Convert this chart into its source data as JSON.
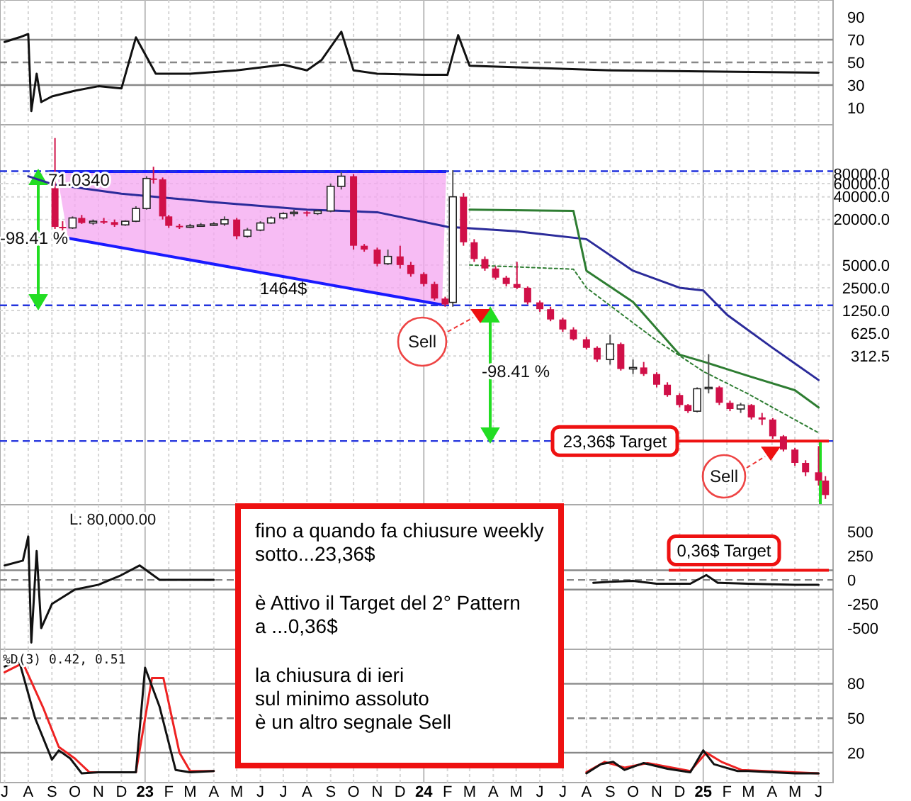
{
  "chart_data": [
    {
      "type": "line",
      "xlim": [
        "2022-06-25",
        "2025-06-20"
      ],
      "ylim": [
        -5,
        105
      ],
      "yticks": [
        10,
        30,
        50,
        70,
        90
      ],
      "tick_labels": "y",
      "grid": "x",
      "ref_lines": [
        {
          "axis": "y",
          "value": 70,
          "color": "#888888",
          "line_style": "solid"
        },
        {
          "axis": "y",
          "value": 30,
          "color": "#888888",
          "line_style": "solid"
        },
        {
          "axis": "y",
          "value": 50,
          "color": "#888888",
          "line_style": "dashed"
        }
      ],
      "series": [
        {
          "color": "#111111",
          "x": [
            "2022-07-01",
            "2022-07-20",
            "2022-08-01",
            "2022-08-05",
            "2022-08-12",
            "2022-08-18",
            "2022-09-01",
            "2022-10-01",
            "2022-11-01",
            "2022-12-01",
            "2022-12-20",
            "2023-01-15",
            "2023-03-01",
            "2023-05-01",
            "2023-07-01",
            "2023-08-01",
            "2023-08-20",
            "2023-09-15",
            "2023-10-01",
            "2023-11-01",
            "2024-01-01",
            "2024-02-01",
            "2024-02-15",
            "2024-03-01",
            "2024-06-01",
            "2024-09-01",
            "2025-01-01",
            "2025-06-01"
          ],
          "values": [
            68,
            72,
            75,
            7,
            40,
            15,
            20,
            25,
            29,
            27,
            72,
            40,
            40,
            43,
            48,
            43,
            52,
            77,
            43,
            40,
            39,
            39,
            74,
            47,
            45,
            43,
            42,
            41
          ]
        }
      ]
    },
    {
      "type": "candlestick",
      "log": true,
      "xlim": [
        "2022-06-25",
        "2025-06-20"
      ],
      "ylim": [
        3.5,
        330000
      ],
      "tick_labels": "y",
      "grid": true,
      "yticks": [
        {
          "value": 312.5,
          "label": "312.5"
        },
        {
          "value": 625,
          "label": "625.0"
        },
        {
          "value": 1250,
          "label": "1250.0"
        },
        {
          "value": 2500,
          "label": "2500.0"
        },
        {
          "value": 5000,
          "label": "5000.0"
        },
        {
          "value": 20000,
          "label": "20000.0"
        },
        {
          "value": 40000,
          "label": "40000.0"
        },
        {
          "value": 60000,
          "label": "60000.0"
        },
        {
          "value": 80000,
          "label": "80000.0"
        }
      ],
      "x": [
        "2022-09-05",
        "2022-09-15",
        "2022-09-28",
        "2022-10-10",
        "2022-10-25",
        "2022-11-08",
        "2022-11-22",
        "2022-12-06",
        "2022-12-20",
        "2023-01-03",
        "2023-01-12",
        "2023-01-24",
        "2023-02-01",
        "2023-02-15",
        "2023-03-01",
        "2023-03-15",
        "2023-04-01",
        "2023-04-15",
        "2023-05-01",
        "2023-05-15",
        "2023-06-01",
        "2023-06-15",
        "2023-07-01",
        "2023-07-15",
        "2023-08-01",
        "2023-08-15",
        "2023-09-01",
        "2023-09-15",
        "2023-10-01",
        "2023-10-15",
        "2023-11-01",
        "2023-11-15",
        "2023-12-01",
        "2023-12-15",
        "2024-01-01",
        "2024-01-15",
        "2024-01-29",
        "2024-02-08",
        "2024-02-22",
        "2024-03-07",
        "2024-03-21",
        "2024-04-04",
        "2024-04-18",
        "2024-05-02",
        "2024-05-16",
        "2024-06-01",
        "2024-06-15",
        "2024-07-01",
        "2024-07-15",
        "2024-08-01",
        "2024-08-15",
        "2024-09-01",
        "2024-09-15",
        "2024-10-01",
        "2024-10-15",
        "2024-11-01",
        "2024-11-15",
        "2024-12-01",
        "2024-12-12",
        "2024-12-24",
        "2025-01-08",
        "2025-01-22",
        "2025-02-05",
        "2025-02-19",
        "2025-03-05",
        "2025-03-19",
        "2025-04-02",
        "2025-04-16",
        "2025-05-01",
        "2025-05-15",
        "2025-06-01",
        "2025-06-10"
      ],
      "ohlc": [
        [
          52000,
          240000,
          15000,
          16000
        ],
        [
          16000,
          19000,
          14000,
          15500
        ],
        [
          15500,
          22000,
          15000,
          21000
        ],
        [
          21000,
          23000,
          17500,
          18000
        ],
        [
          18000,
          20000,
          17000,
          19000
        ],
        [
          19000,
          21000,
          17500,
          18500
        ],
        [
          18500,
          20000,
          16000,
          17000
        ],
        [
          17000,
          19500,
          16500,
          19000
        ],
        [
          19000,
          30000,
          18500,
          28000
        ],
        [
          28000,
          75000,
          27000,
          70000
        ],
        [
          70000,
          100000,
          60000,
          68000
        ],
        [
          68000,
          72000,
          20000,
          22000
        ],
        [
          22000,
          23000,
          15500,
          16500
        ],
        [
          16500,
          17500,
          15000,
          16000
        ],
        [
          16000,
          17500,
          15500,
          16500
        ],
        [
          16500,
          18000,
          16000,
          17000
        ],
        [
          17000,
          18500,
          16500,
          17500
        ],
        [
          17500,
          22000,
          16500,
          20000
        ],
        [
          20000,
          21000,
          11000,
          12000
        ],
        [
          12000,
          15500,
          11500,
          14500
        ],
        [
          14500,
          19000,
          14000,
          18000
        ],
        [
          18000,
          22000,
          17500,
          21000
        ],
        [
          21000,
          25000,
          20000,
          24000
        ],
        [
          24000,
          27000,
          22000,
          25000
        ],
        [
          25000,
          26000,
          22000,
          24000
        ],
        [
          24000,
          27000,
          23000,
          26000
        ],
        [
          26000,
          60000,
          25000,
          55000
        ],
        [
          55000,
          85000,
          50000,
          75000
        ],
        [
          75000,
          80000,
          8000,
          9000
        ],
        [
          9000,
          9500,
          7500,
          8000
        ],
        [
          8000,
          8500,
          4800,
          5200
        ],
        [
          5200,
          8000,
          5000,
          6500
        ],
        [
          6500,
          9000,
          4500,
          5000
        ],
        [
          5000,
          5500,
          3500,
          3800
        ],
        [
          3800,
          4000,
          2600,
          2800
        ],
        [
          2800,
          3000,
          1700,
          1800
        ],
        [
          1800,
          1900,
          1400,
          1500
        ],
        [
          1600,
          90000,
          1400,
          40000
        ],
        [
          40000,
          45000,
          9000,
          10000
        ],
        [
          10000,
          11000,
          5500,
          6000
        ],
        [
          6000,
          6500,
          4200,
          4500
        ],
        [
          4500,
          4800,
          3200,
          3400
        ],
        [
          3400,
          3600,
          2600,
          2800
        ],
        [
          2800,
          5500,
          2400,
          2500
        ],
        [
          2500,
          2600,
          1500,
          1600
        ],
        [
          1600,
          1700,
          1200,
          1300
        ],
        [
          1300,
          1400,
          900,
          950
        ],
        [
          950,
          1000,
          650,
          700
        ],
        [
          700,
          750,
          500,
          520
        ],
        [
          520,
          560,
          380,
          400
        ],
        [
          400,
          420,
          260,
          280
        ],
        [
          280,
          600,
          240,
          450
        ],
        [
          450,
          470,
          200,
          210
        ],
        [
          210,
          280,
          180,
          220
        ],
        [
          220,
          260,
          170,
          180
        ],
        [
          180,
          190,
          120,
          130
        ],
        [
          130,
          140,
          90,
          95
        ],
        [
          95,
          100,
          65,
          70
        ],
        [
          70,
          72,
          55,
          58
        ],
        [
          58,
          120,
          56,
          115
        ],
        [
          115,
          330,
          100,
          120
        ],
        [
          120,
          125,
          70,
          75
        ],
        [
          75,
          80,
          58,
          62
        ],
        [
          62,
          75,
          55,
          70
        ],
        [
          70,
          72,
          45,
          48
        ],
        [
          48,
          55,
          38,
          45
        ],
        [
          45,
          47,
          25,
          27
        ],
        [
          27,
          28,
          17,
          18
        ],
        [
          18,
          19,
          11,
          12
        ],
        [
          12,
          13,
          8,
          9
        ],
        [
          9,
          20,
          6,
          7
        ],
        [
          7,
          8,
          4,
          4.5
        ]
      ],
      "series": [
        {
          "type": "line",
          "color": "#2b2b9a",
          "line_style": "solid",
          "x": [
            "2022-08-01",
            "2022-09-01",
            "2022-12-01",
            "2023-04-01",
            "2023-08-01",
            "2023-11-01",
            "2024-02-01",
            "2024-05-01",
            "2024-08-01",
            "2024-10-01",
            "2024-12-01",
            "2025-01-01",
            "2025-02-01",
            "2025-04-01",
            "2025-06-01"
          ],
          "values": [
            75000,
            59000,
            44000,
            34000,
            27000,
            25000,
            16000,
            14000,
            11000,
            4200,
            2500,
            2300,
            1100,
            405,
            150
          ]
        },
        {
          "type": "line",
          "color": "#2e7d32",
          "line_style": "solid",
          "x": [
            "2024-03-01",
            "2024-07-15",
            "2024-08-01",
            "2024-10-01",
            "2024-12-01",
            "2025-01-01",
            "2025-03-01",
            "2025-05-01",
            "2025-06-01"
          ],
          "values": [
            27000,
            26000,
            4200,
            1620,
            325,
            263,
            170,
            110,
            65
          ]
        },
        {
          "type": "line",
          "color": "#2e7d32",
          "line_style": "dotted",
          "x": [
            "2024-03-01",
            "2024-07-15",
            "2024-08-01",
            "2024-11-01",
            "2025-01-01",
            "2025-03-01",
            "2025-06-01"
          ],
          "values": [
            5000,
            4400,
            2500,
            500,
            195,
            98,
            30
          ]
        }
      ],
      "ref_lines": [
        {
          "axis": "y",
          "value": 87400,
          "color": "#2233dd",
          "line_style": "dashed"
        },
        {
          "axis": "y",
          "value": 1464,
          "label": "1464$",
          "color": "#2233dd",
          "line_style": "dashed"
        },
        {
          "axis": "y",
          "value": 23.36,
          "color": "#2233dd",
          "line_style": "dashed"
        },
        {
          "axis": "y",
          "value": 23.36,
          "label": "23,36$ Target",
          "color": "#ee1111",
          "line_style": "solid"
        }
      ],
      "annotations": [
        "71.0340",
        "-98.41 %",
        "-98.41 %",
        "Sell",
        "Sell"
      ]
    },
    {
      "type": "line",
      "xlim": [
        "2022-06-25",
        "2025-06-20"
      ],
      "ylim": [
        -720,
        780
      ],
      "yticks": [
        -500,
        -250,
        0,
        250,
        500
      ],
      "tick_labels": "y",
      "grid": "x",
      "ref_lines": [
        {
          "axis": "y",
          "value": 100,
          "color": "#888888",
          "line_style": "solid"
        },
        {
          "axis": "y",
          "value": -100,
          "color": "#888888",
          "line_style": "solid"
        },
        {
          "axis": "y",
          "value": 0,
          "color": "#888888",
          "line_style": "dashed"
        },
        {
          "axis": "y",
          "value": 100,
          "label": "0,36$ Target",
          "color": "#ee1111",
          "line_style": "solid"
        }
      ],
      "annotations": [
        "L: 80,000.00"
      ],
      "series": [
        {
          "color": "#111111",
          "x": [
            "2022-07-01",
            "2022-07-25",
            "2022-08-01",
            "2022-08-05",
            "2022-08-12",
            "2022-08-18",
            "2022-09-01",
            "2022-10-01",
            "2022-11-01",
            "2022-12-01",
            "2022-12-25",
            "2023-01-20",
            "2023-03-01",
            "2023-04-01",
            "2024-01-01",
            "2024-08-10",
            "2024-09-01",
            "2024-10-01",
            "2024-11-01",
            "2024-12-15",
            "2025-01-05",
            "2025-01-20",
            "2025-03-01",
            "2025-05-01",
            "2025-06-01"
          ],
          "values": [
            150,
            200,
            450,
            -650,
            300,
            -500,
            -250,
            -100,
            -50,
            50,
            150,
            0,
            0,
            0,
            null,
            -30,
            -20,
            -10,
            -40,
            -40,
            50,
            -30,
            -40,
            -50,
            -50
          ]
        }
      ]
    },
    {
      "type": "line",
      "xlim": [
        "2022-06-25",
        "2025-06-20"
      ],
      "ylim": [
        -6,
        110
      ],
      "yticks": [
        20,
        50,
        80
      ],
      "grid": "x",
      "xticks": [
        {
          "value": "2022-07",
          "label": "J"
        },
        {
          "value": "2022-08",
          "label": "A"
        },
        {
          "value": "2022-09",
          "label": "S"
        },
        {
          "value": "2022-10",
          "label": "O"
        },
        {
          "value": "2022-11",
          "label": "N"
        },
        {
          "value": "2022-12",
          "label": "D"
        },
        {
          "value": "2023-01",
          "label": "23"
        },
        {
          "value": "2023-02",
          "label": "F"
        },
        {
          "value": "2023-03",
          "label": "M"
        },
        {
          "value": "2023-04",
          "label": "A"
        },
        {
          "value": "2023-05",
          "label": "M"
        },
        {
          "value": "2023-06",
          "label": "J"
        },
        {
          "value": "2023-07",
          "label": "J"
        },
        {
          "value": "2023-08",
          "label": "A"
        },
        {
          "value": "2023-09",
          "label": "S"
        },
        {
          "value": "2023-10",
          "label": "O"
        },
        {
          "value": "2023-11",
          "label": "N"
        },
        {
          "value": "2023-12",
          "label": "D"
        },
        {
          "value": "2024-01",
          "label": "24"
        },
        {
          "value": "2024-02",
          "label": "F"
        },
        {
          "value": "2024-03",
          "label": "M"
        },
        {
          "value": "2024-04",
          "label": "A"
        },
        {
          "value": "2024-05",
          "label": "M"
        },
        {
          "value": "2024-06",
          "label": "J"
        },
        {
          "value": "2024-07",
          "label": "J"
        },
        {
          "value": "2024-08",
          "label": "A"
        },
        {
          "value": "2024-09",
          "label": "S"
        },
        {
          "value": "2024-10",
          "label": "O"
        },
        {
          "value": "2024-11",
          "label": "N"
        },
        {
          "value": "2024-12",
          "label": "D"
        },
        {
          "value": "2025-01",
          "label": "25"
        },
        {
          "value": "2025-02",
          "label": "F"
        },
        {
          "value": "2025-03",
          "label": "M"
        },
        {
          "value": "2025-04",
          "label": "A"
        },
        {
          "value": "2025-05",
          "label": "M"
        },
        {
          "value": "2025-06",
          "label": "J"
        }
      ],
      "ref_lines": [
        {
          "axis": "y",
          "value": 80,
          "color": "#888888",
          "line_style": "solid"
        },
        {
          "axis": "y",
          "value": 20,
          "color": "#888888",
          "line_style": "solid"
        },
        {
          "axis": "y",
          "value": 50,
          "color": "#888888",
          "line_style": "dashed"
        }
      ],
      "annotations": [
        "%D(3) 0.42, 0.51",
        "fino a quando fa chiusure weekly\nsotto...23,36$",
        "è Attivo il Target del 2° Pattern\na ...0,36$",
        "la chiusura di ieri\nsul minimo assoluto\nè un altro segnale Sell"
      ],
      "series": [
        {
          "color": "#ee2222",
          "x": [
            "2022-07-01",
            "2022-07-25",
            "2022-08-20",
            "2022-09-10",
            "2022-10-01",
            "2022-10-20",
            "2022-12-20",
            "2023-01-10",
            "2023-01-25",
            "2023-02-15",
            "2023-03-01",
            "2023-04-01",
            "2024-01-01",
            "2024-08-01",
            "2024-08-25",
            "2024-09-20",
            "2024-10-20",
            "2024-12-15",
            "2025-01-05",
            "2025-01-25",
            "2025-02-20",
            "2025-06-01"
          ],
          "values": [
            90,
            98,
            60,
            25,
            15,
            3,
            3,
            85,
            85,
            20,
            4,
            4,
            null,
            3,
            12,
            7,
            11,
            4,
            20,
            12,
            5,
            2
          ]
        },
        {
          "color": "#111111",
          "x": [
            "2022-07-01",
            "2022-07-20",
            "2022-08-10",
            "2022-09-01",
            "2022-09-10",
            "2022-09-25",
            "2022-10-10",
            "2022-11-01",
            "2022-12-20",
            "2023-01-01",
            "2023-01-20",
            "2023-02-10",
            "2023-03-01",
            "2023-04-01",
            "2024-01-01",
            "2024-08-01",
            "2024-08-20",
            "2024-09-05",
            "2024-09-20",
            "2024-10-15",
            "2024-11-15",
            "2024-12-15",
            "2025-01-01",
            "2025-01-15",
            "2025-02-15",
            "2025-03-01",
            "2025-05-01",
            "2025-06-01"
          ],
          "values": [
            95,
            100,
            50,
            14,
            22,
            15,
            2,
            3,
            3,
            94,
            60,
            5,
            3,
            4,
            null,
            2,
            10,
            12,
            5,
            11,
            6,
            3,
            22,
            10,
            4,
            4,
            2,
            2
          ]
        }
      ]
    }
  ]
}
